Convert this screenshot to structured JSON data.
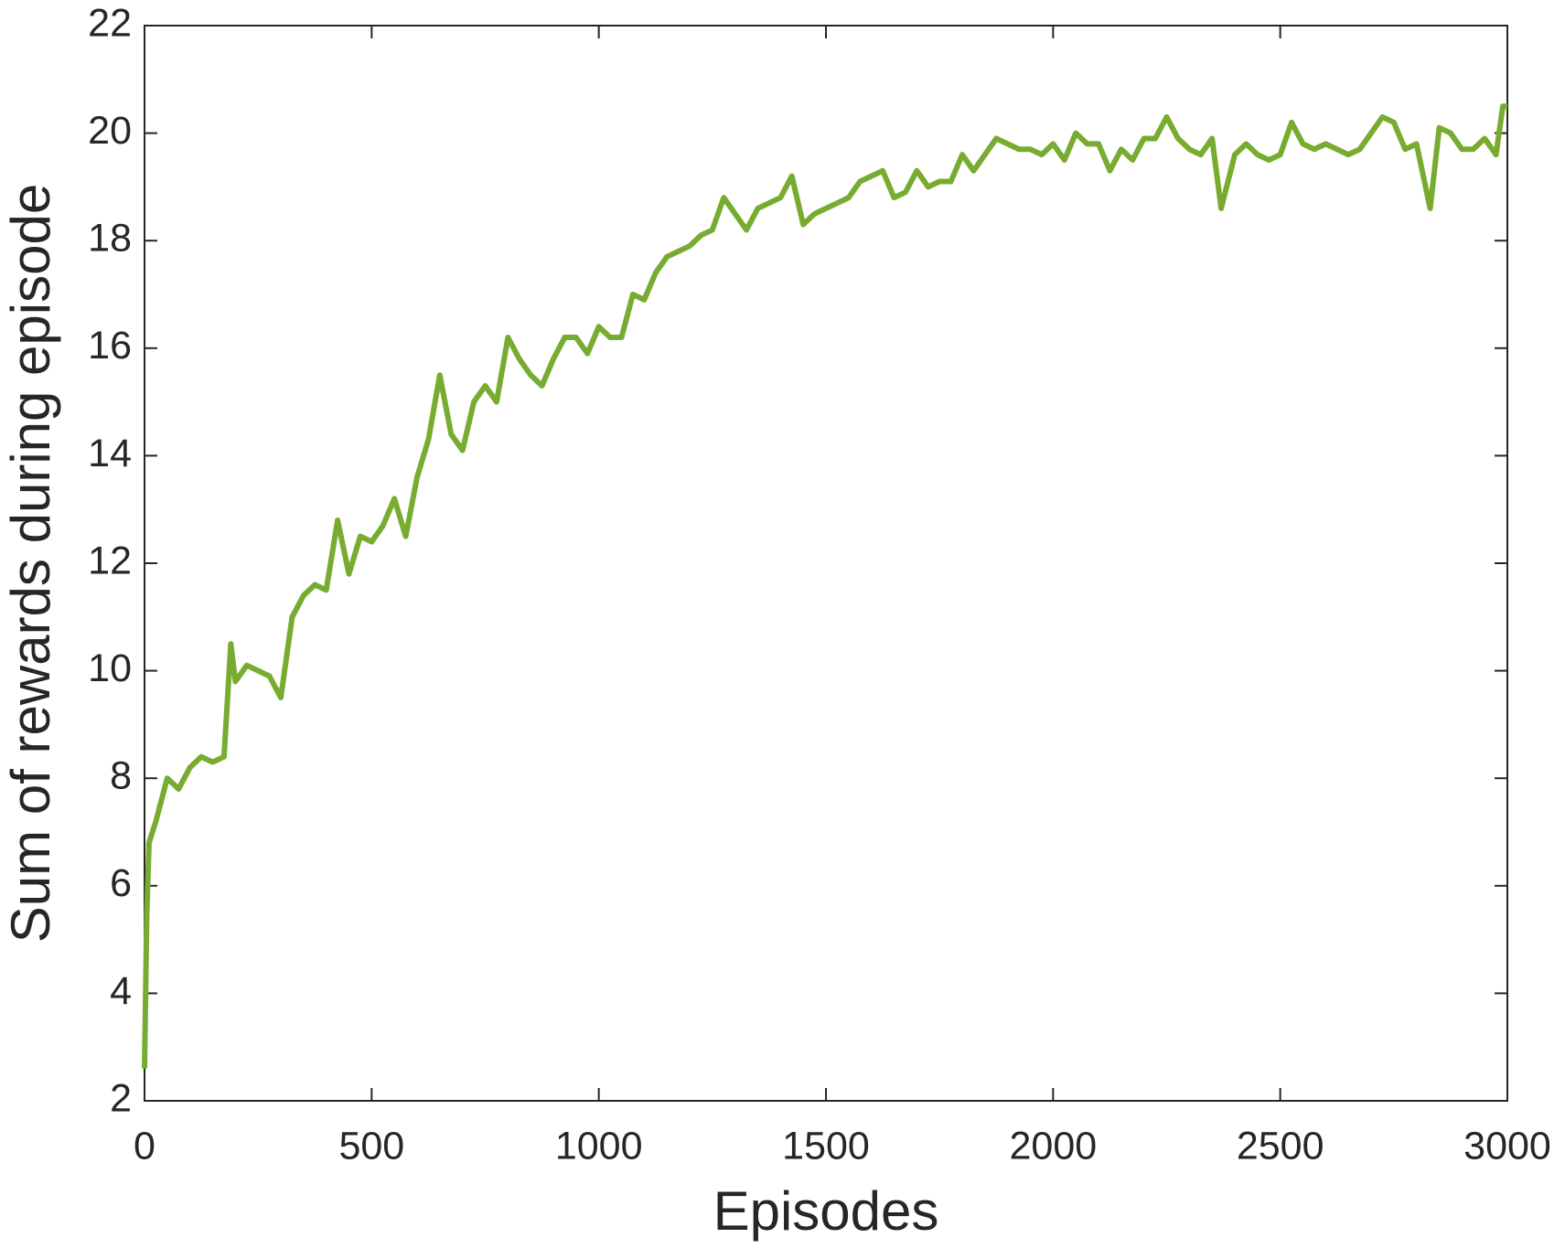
{
  "chart_data": {
    "type": "line",
    "xlabel": "Episodes",
    "ylabel": "Sum of rewards during episode",
    "x": [
      0,
      5,
      10,
      25,
      50,
      75,
      100,
      125,
      150,
      175,
      190,
      200,
      225,
      250,
      275,
      300,
      325,
      350,
      375,
      400,
      425,
      450,
      475,
      500,
      525,
      550,
      575,
      600,
      625,
      650,
      675,
      700,
      725,
      750,
      775,
      800,
      825,
      850,
      875,
      900,
      925,
      950,
      975,
      1000,
      1025,
      1050,
      1075,
      1100,
      1125,
      1150,
      1175,
      1200,
      1225,
      1250,
      1275,
      1300,
      1325,
      1350,
      1375,
      1400,
      1425,
      1450,
      1475,
      1500,
      1525,
      1550,
      1575,
      1600,
      1625,
      1650,
      1675,
      1700,
      1725,
      1750,
      1775,
      1800,
      1825,
      1850,
      1875,
      1900,
      1925,
      1950,
      1975,
      2000,
      2025,
      2050,
      2075,
      2100,
      2125,
      2150,
      2175,
      2200,
      2225,
      2250,
      2275,
      2300,
      2325,
      2350,
      2370,
      2400,
      2425,
      2450,
      2475,
      2500,
      2525,
      2550,
      2575,
      2600,
      2625,
      2650,
      2675,
      2700,
      2725,
      2750,
      2775,
      2800,
      2830,
      2850,
      2875,
      2900,
      2925,
      2950,
      2975,
      2990,
      3000
    ],
    "values": [
      2.6,
      5.5,
      6.8,
      7.2,
      8.0,
      7.8,
      8.2,
      8.4,
      8.3,
      8.4,
      10.5,
      9.8,
      10.1,
      10.0,
      9.9,
      9.5,
      11.0,
      11.4,
      11.6,
      11.5,
      12.8,
      11.8,
      12.5,
      12.4,
      12.7,
      13.2,
      12.5,
      13.6,
      14.3,
      15.5,
      14.4,
      14.1,
      15.0,
      15.3,
      15.0,
      16.2,
      15.8,
      15.5,
      15.3,
      15.8,
      16.2,
      16.2,
      15.9,
      16.4,
      16.2,
      16.2,
      17.0,
      16.9,
      17.4,
      17.7,
      17.8,
      17.9,
      18.1,
      18.2,
      18.8,
      18.5,
      18.2,
      18.6,
      18.7,
      18.8,
      19.2,
      18.3,
      18.5,
      18.6,
      18.7,
      18.8,
      19.1,
      19.2,
      19.3,
      18.8,
      18.9,
      19.3,
      19.0,
      19.1,
      19.1,
      19.6,
      19.3,
      19.6,
      19.9,
      19.8,
      19.7,
      19.7,
      19.6,
      19.8,
      19.5,
      20.0,
      19.8,
      19.8,
      19.3,
      19.7,
      19.5,
      19.9,
      19.9,
      20.3,
      19.9,
      19.7,
      19.6,
      19.9,
      18.6,
      19.6,
      19.8,
      19.6,
      19.5,
      19.6,
      20.2,
      19.8,
      19.7,
      19.8,
      19.7,
      19.6,
      19.7,
      20.0,
      20.3,
      20.2,
      19.7,
      19.8,
      18.6,
      20.1,
      20.0,
      19.7,
      19.7,
      19.9,
      19.6,
      20.5,
      20.5
    ],
    "color": "#77ac30",
    "xlim": [
      0,
      3000
    ],
    "xticks": [
      0,
      500,
      1000,
      1500,
      2000,
      2500,
      3000
    ],
    "ylim": [
      2,
      22
    ],
    "yticks": [
      2,
      4,
      6,
      8,
      10,
      12,
      14,
      16,
      18,
      20,
      22
    ],
    "grid": false
  }
}
